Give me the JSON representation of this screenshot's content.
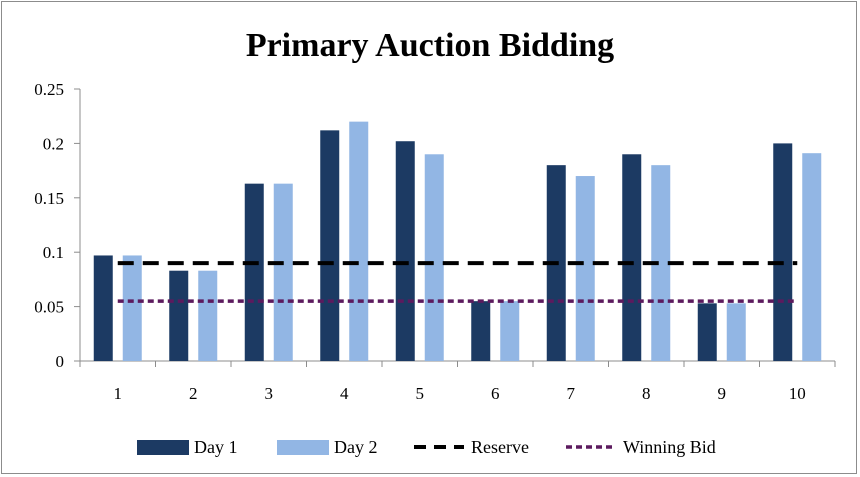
{
  "chart_data": {
    "type": "bar",
    "title": "Primary Auction Bidding",
    "xlabel": "",
    "ylabel": "",
    "categories": [
      "1",
      "2",
      "3",
      "4",
      "5",
      "6",
      "7",
      "8",
      "9",
      "10"
    ],
    "series": [
      {
        "name": "Day 1",
        "type": "bar",
        "color": "#1c3a63",
        "values": [
          0.097,
          0.083,
          0.163,
          0.212,
          0.202,
          0.055,
          0.18,
          0.19,
          0.053,
          0.2
        ]
      },
      {
        "name": "Day 2",
        "type": "bar",
        "color": "#92b6e4",
        "values": [
          0.097,
          0.083,
          0.163,
          0.22,
          0.19,
          0.055,
          0.17,
          0.18,
          0.053,
          0.191
        ]
      },
      {
        "name": "Reserve",
        "type": "line",
        "style": "dashed",
        "color": "#000000",
        "values": [
          0.09,
          0.09,
          0.09,
          0.09,
          0.09,
          0.09,
          0.09,
          0.09,
          0.09,
          0.09
        ]
      },
      {
        "name": "Winning Bid",
        "type": "line",
        "style": "dashed",
        "color": "#5c1a5e",
        "values": [
          0.055,
          0.055,
          0.055,
          0.055,
          0.055,
          0.055,
          0.055,
          0.055,
          0.055,
          0.055
        ]
      }
    ],
    "ylim": [
      0,
      0.25
    ],
    "yticks": [
      "0",
      "0.05",
      "0.1",
      "0.15",
      "0.2",
      "0.25"
    ],
    "grid": false,
    "legend_position": "bottom"
  }
}
